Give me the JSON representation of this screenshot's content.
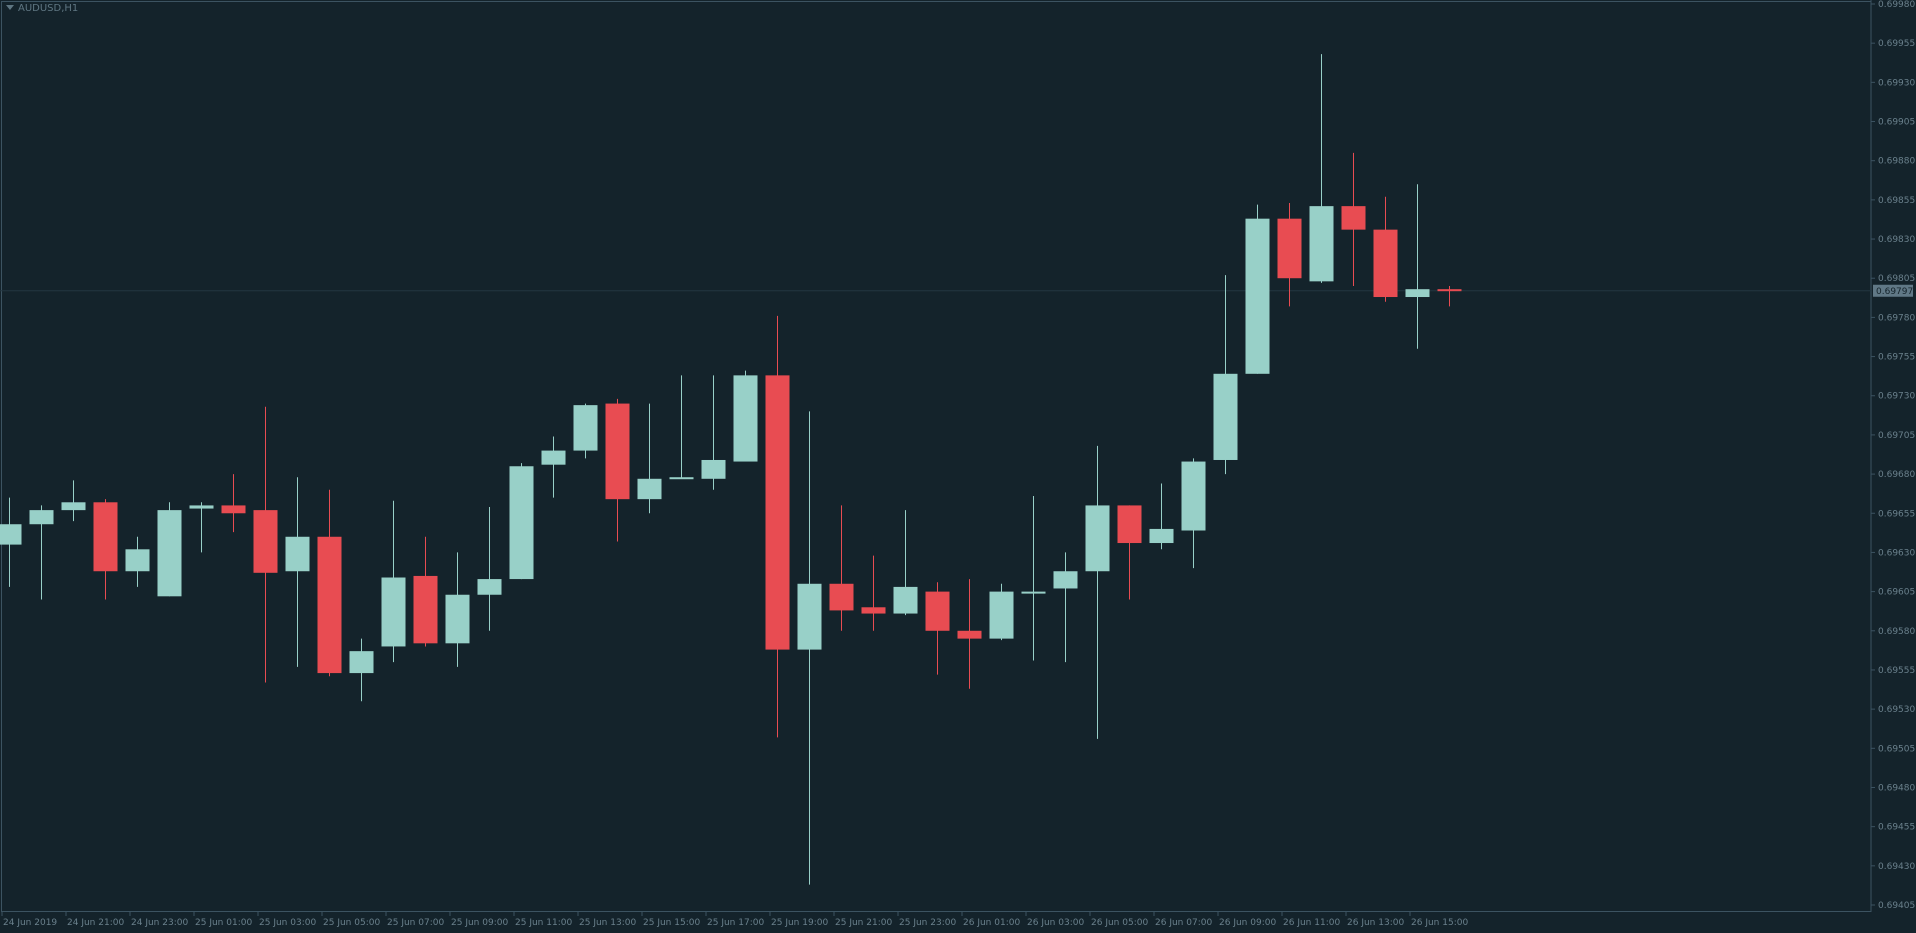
{
  "chart_data": {
    "type": "candlestick",
    "symbol": "AUDUSD,H1",
    "ylim": [
      0.69405,
      0.6998
    ],
    "y_ticks": [
      "0.69980",
      "0.69955",
      "0.69930",
      "0.69905",
      "0.69880",
      "0.69855",
      "0.69830",
      "0.69805",
      "0.69780",
      "0.69755",
      "0.69730",
      "0.69705",
      "0.69680",
      "0.69655",
      "0.69630",
      "0.69605",
      "0.69580",
      "0.69555",
      "0.69530",
      "0.69505",
      "0.69480",
      "0.69455",
      "0.69430",
      "0.69405"
    ],
    "current_price": "0.69797",
    "x_ticks": [
      "24 Jun 2019",
      "24 Jun 21:00",
      "24 Jun 23:00",
      "25 Jun 01:00",
      "25 Jun 03:00",
      "25 Jun 05:00",
      "25 Jun 07:00",
      "25 Jun 09:00",
      "25 Jun 11:00",
      "25 Jun 13:00",
      "25 Jun 15:00",
      "25 Jun 17:00",
      "25 Jun 19:00",
      "25 Jun 21:00",
      "25 Jun 23:00",
      "26 Jun 01:00",
      "26 Jun 03:00",
      "26 Jun 05:00",
      "26 Jun 07:00",
      "26 Jun 09:00",
      "26 Jun 11:00",
      "26 Jun 13:00",
      "26 Jun 15:00"
    ],
    "colors": {
      "background": "#14232b",
      "bull": "#98d0c8",
      "bear": "#e84c52",
      "axis": "#3c5361",
      "tick_text": "#6a808c",
      "price_box": "#607886"
    },
    "candles": [
      {
        "o": 0.69635,
        "h": 0.69665,
        "l": 0.69608,
        "c": 0.69648
      },
      {
        "o": 0.69648,
        "h": 0.6966,
        "l": 0.696,
        "c": 0.69657
      },
      {
        "o": 0.69657,
        "h": 0.69676,
        "l": 0.6965,
        "c": 0.69662
      },
      {
        "o": 0.69662,
        "h": 0.69664,
        "l": 0.696,
        "c": 0.69618
      },
      {
        "o": 0.69618,
        "h": 0.6964,
        "l": 0.69608,
        "c": 0.69632
      },
      {
        "o": 0.69602,
        "h": 0.69662,
        "l": 0.69602,
        "c": 0.69657
      },
      {
        "o": 0.69658,
        "h": 0.69662,
        "l": 0.6963,
        "c": 0.6966
      },
      {
        "o": 0.6966,
        "h": 0.6968,
        "l": 0.69643,
        "c": 0.69655
      },
      {
        "o": 0.69657,
        "h": 0.69723,
        "l": 0.69547,
        "c": 0.69617
      },
      {
        "o": 0.69618,
        "h": 0.69678,
        "l": 0.69557,
        "c": 0.6964
      },
      {
        "o": 0.6964,
        "h": 0.6967,
        "l": 0.69551,
        "c": 0.69553
      },
      {
        "o": 0.69553,
        "h": 0.69575,
        "l": 0.69535,
        "c": 0.69567
      },
      {
        "o": 0.6957,
        "h": 0.69663,
        "l": 0.6956,
        "c": 0.69614
      },
      {
        "o": 0.69615,
        "h": 0.6964,
        "l": 0.6957,
        "c": 0.69572
      },
      {
        "o": 0.69572,
        "h": 0.6963,
        "l": 0.69557,
        "c": 0.69603
      },
      {
        "o": 0.69603,
        "h": 0.69659,
        "l": 0.6958,
        "c": 0.69613
      },
      {
        "o": 0.69613,
        "h": 0.69687,
        "l": 0.69613,
        "c": 0.69685
      },
      {
        "o": 0.69686,
        "h": 0.69704,
        "l": 0.69665,
        "c": 0.69695
      },
      {
        "o": 0.69695,
        "h": 0.69725,
        "l": 0.6969,
        "c": 0.69724
      },
      {
        "o": 0.69725,
        "h": 0.69728,
        "l": 0.69637,
        "c": 0.69664
      },
      {
        "o": 0.69664,
        "h": 0.69725,
        "l": 0.69655,
        "c": 0.69677
      },
      {
        "o": 0.69678,
        "h": 0.69743,
        "l": 0.69677,
        "c": 0.69678
      },
      {
        "o": 0.69677,
        "h": 0.69743,
        "l": 0.6967,
        "c": 0.69689
      },
      {
        "o": 0.69688,
        "h": 0.69746,
        "l": 0.69688,
        "c": 0.69743
      },
      {
        "o": 0.69743,
        "h": 0.69781,
        "l": 0.69512,
        "c": 0.69568
      },
      {
        "o": 0.69568,
        "h": 0.6972,
        "l": 0.69418,
        "c": 0.6961
      },
      {
        "o": 0.6961,
        "h": 0.6966,
        "l": 0.6958,
        "c": 0.69593
      },
      {
        "o": 0.69595,
        "h": 0.69628,
        "l": 0.6958,
        "c": 0.69591
      },
      {
        "o": 0.69591,
        "h": 0.69657,
        "l": 0.6959,
        "c": 0.69608
      },
      {
        "o": 0.69605,
        "h": 0.69611,
        "l": 0.69552,
        "c": 0.6958
      },
      {
        "o": 0.6958,
        "h": 0.69613,
        "l": 0.69543,
        "c": 0.69575
      },
      {
        "o": 0.69575,
        "h": 0.6961,
        "l": 0.69574,
        "c": 0.69605
      },
      {
        "o": 0.69604,
        "h": 0.69666,
        "l": 0.69561,
        "c": 0.69605
      },
      {
        "o": 0.69607,
        "h": 0.6963,
        "l": 0.6956,
        "c": 0.69618
      },
      {
        "o": 0.69618,
        "h": 0.69698,
        "l": 0.69511,
        "c": 0.6966
      },
      {
        "o": 0.6966,
        "h": 0.6966,
        "l": 0.696,
        "c": 0.69636
      },
      {
        "o": 0.69636,
        "h": 0.69674,
        "l": 0.69632,
        "c": 0.69645
      },
      {
        "o": 0.69644,
        "h": 0.6969,
        "l": 0.6962,
        "c": 0.69688
      },
      {
        "o": 0.69689,
        "h": 0.69807,
        "l": 0.6968,
        "c": 0.69744
      },
      {
        "o": 0.69744,
        "h": 0.69852,
        "l": 0.69744,
        "c": 0.69843
      },
      {
        "o": 0.69843,
        "h": 0.69853,
        "l": 0.69787,
        "c": 0.69805
      },
      {
        "o": 0.69803,
        "h": 0.69948,
        "l": 0.69802,
        "c": 0.69851
      },
      {
        "o": 0.69851,
        "h": 0.69885,
        "l": 0.698,
        "c": 0.69836
      },
      {
        "o": 0.69836,
        "h": 0.69857,
        "l": 0.6979,
        "c": 0.69793
      },
      {
        "o": 0.69793,
        "h": 0.69865,
        "l": 0.6976,
        "c": 0.69798
      },
      {
        "o": 0.69798,
        "h": 0.698,
        "l": 0.69787,
        "c": 0.69797
      }
    ]
  }
}
